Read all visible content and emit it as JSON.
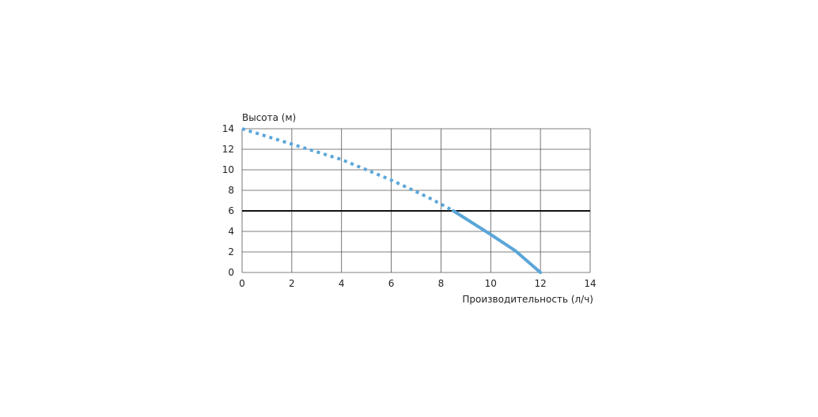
{
  "chart_data": {
    "type": "line",
    "title": "",
    "ylabel": "Высота (м)",
    "xlabel": "Производительность (л/ч)",
    "xlim": [
      0,
      14
    ],
    "ylim": [
      0,
      14
    ],
    "x_ticks": [
      "0",
      "2",
      "4",
      "6",
      "8",
      "10",
      "12",
      "14"
    ],
    "y_ticks": [
      "0",
      "2",
      "4",
      "6",
      "8",
      "10",
      "12",
      "14"
    ],
    "grid": true,
    "reference_line": {
      "y": 6
    },
    "series": [
      {
        "style": "dotted",
        "color": "#5aa6d9",
        "x": [
          0,
          2,
          4,
          6,
          7.5,
          8.5
        ],
        "y": [
          14,
          12.5,
          11,
          9,
          7.3,
          6
        ]
      },
      {
        "style": "solid",
        "color": "#5aa6d9",
        "x": [
          8.5,
          10,
          11,
          12
        ],
        "y": [
          6,
          3.7,
          2.1,
          0
        ]
      }
    ]
  }
}
